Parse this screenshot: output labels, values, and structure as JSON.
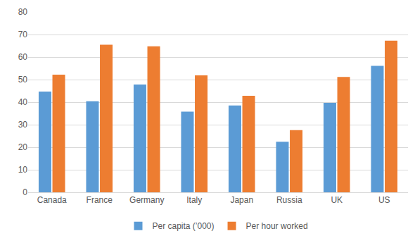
{
  "chart_data": {
    "type": "bar",
    "categories": [
      "Canada",
      "France",
      "Germany",
      "Italy",
      "Japan",
      "Russia",
      "UK",
      "US"
    ],
    "series": [
      {
        "name": "Per capita (’000)",
        "color": "#5b9bd5",
        "values": [
          44.7,
          40.4,
          47.8,
          35.8,
          38.5,
          22.4,
          39.7,
          56.1
        ]
      },
      {
        "name": "Per hour worked",
        "color": "#ed7d31",
        "values": [
          52.2,
          65.5,
          64.8,
          51.9,
          42.8,
          27.6,
          51.2,
          67.3
        ]
      }
    ],
    "ylim": [
      0,
      80
    ],
    "yticks": [
      0,
      10,
      20,
      30,
      40,
      50,
      60,
      70,
      80
    ],
    "grid": true,
    "legend": "bottom"
  }
}
